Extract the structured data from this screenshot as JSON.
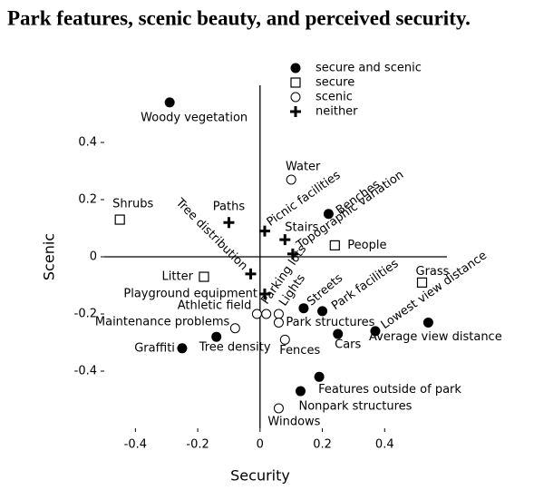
{
  "chart_data": {
    "type": "scatter",
    "title": "Park features, scenic beauty, and perceived security.",
    "x_label": "Security",
    "y_label": "Scenic",
    "xlim": [
      -0.5,
      0.6
    ],
    "ylim": [
      -0.6,
      0.6
    ],
    "xticks": [
      -0.4,
      -0.2,
      0,
      0.2,
      0.4
    ],
    "yticks": [
      -0.4,
      -0.2,
      0,
      0.2,
      0.4
    ],
    "series": [
      {
        "name": "secure and scenic",
        "marker": "filled-circle",
        "color": "#000000",
        "labels": [
          "Woody vegetation",
          "Benches",
          "Streets",
          "Park facilities",
          "Cars",
          "Lowest view distance",
          "Average view distance",
          "Graffiti",
          "Tree density",
          "Features outside of park",
          "Nonpark structures"
        ],
        "x": [
          -0.29,
          0.22,
          0.14,
          0.2,
          0.25,
          0.37,
          0.54,
          -0.25,
          -0.14,
          0.19,
          0.13
        ],
        "values": [
          0.54,
          0.15,
          -0.18,
          -0.19,
          -0.27,
          -0.26,
          -0.23,
          -0.32,
          -0.28,
          -0.42,
          -0.47
        ]
      },
      {
        "name": "secure",
        "marker": "open-square",
        "color": "#000000",
        "labels": [
          "Shrubs",
          "Litter",
          "People",
          "Grass"
        ],
        "x": [
          -0.45,
          -0.18,
          0.24,
          0.52
        ],
        "values": [
          0.13,
          -0.07,
          0.04,
          -0.09
        ]
      },
      {
        "name": "scenic",
        "marker": "open-circle",
        "color": "#000000",
        "labels": [
          "Water",
          "Athletic field",
          "Parking lots",
          "Lights",
          "Maintenance problems",
          "Park structures",
          "Fences",
          "Windows"
        ],
        "x": [
          0.1,
          -0.01,
          0.02,
          0.06,
          -0.08,
          0.06,
          0.08,
          0.06
        ],
        "values": [
          0.27,
          -0.2,
          -0.2,
          -0.2,
          -0.25,
          -0.23,
          -0.29,
          -0.53
        ]
      },
      {
        "name": "neither",
        "marker": "plus",
        "color": "#000000",
        "labels": [
          "Paths",
          "Picnic facilities",
          "Stairs",
          "Topographic variation",
          "Tree distribution",
          "Playground equipment"
        ],
        "x": [
          -0.1,
          0.015,
          0.08,
          0.105,
          -0.03,
          0.015
        ],
        "values": [
          0.12,
          0.09,
          0.06,
          0.01,
          -0.06,
          -0.13
        ]
      }
    ]
  }
}
